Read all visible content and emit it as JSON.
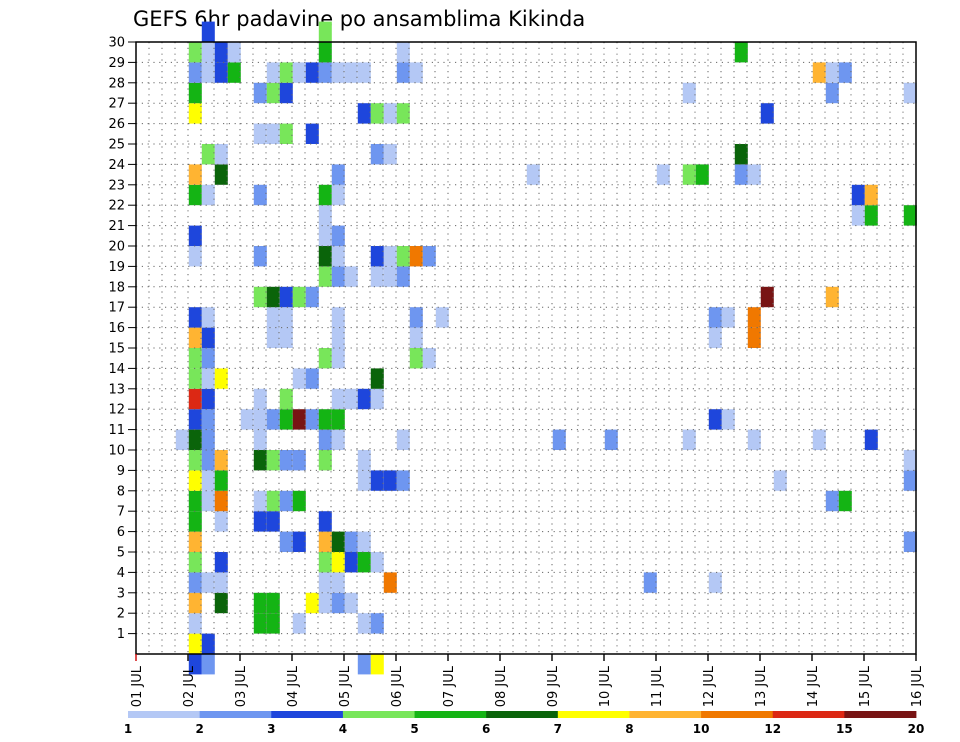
{
  "chart_data": {
    "type": "heatmap",
    "title": "GEFS 6hr padavine po ansamblima Kikinda",
    "x_tick_labels": [
      "01 JUL",
      "02 JUL",
      "03 JUL",
      "04 JUL",
      "05 JUL",
      "06 JUL",
      "07 JUL",
      "08 JUL",
      "09 JUL",
      "10 JUL",
      "11 JUL",
      "12 JUL",
      "13 JUL",
      "14 JUL",
      "15 JUL",
      "16 JUL"
    ],
    "y_tick_labels": [
      "1",
      "2",
      "3",
      "4",
      "5",
      "6",
      "7",
      "8",
      "9",
      "10",
      "11",
      "12",
      "13",
      "14",
      "15",
      "16",
      "17",
      "18",
      "19",
      "20",
      "21",
      "22",
      "23",
      "24",
      "25",
      "26",
      "27",
      "28",
      "29",
      "30"
    ],
    "xlim": [
      0,
      60
    ],
    "ylim": [
      0,
      30
    ],
    "grid": true,
    "colorbar": {
      "colors": [
        "#b4c8f5",
        "#6e96f0",
        "#1e46dc",
        "#78e65a",
        "#14b414",
        "#0a640a",
        "#ffff00",
        "#ffb432",
        "#f07800",
        "#dc2814",
        "#781414"
      ],
      "labels": [
        "1",
        "2",
        "3",
        "4",
        "5",
        "6",
        "7",
        "8",
        "10",
        "12",
        "15",
        "20"
      ],
      "bounds": [
        1,
        2,
        3,
        4,
        5,
        6,
        7,
        8,
        10,
        12,
        15,
        20
      ]
    },
    "cells": [
      [
        4,
        0,
        7
      ],
      [
        5,
        0,
        3
      ],
      [
        4,
        1,
        1
      ],
      [
        9,
        1,
        5
      ],
      [
        10,
        1,
        5
      ],
      [
        12,
        1,
        1
      ],
      [
        17,
        1,
        1
      ],
      [
        18,
        1,
        2
      ],
      [
        4,
        2,
        8
      ],
      [
        6,
        2,
        6
      ],
      [
        9,
        2,
        5
      ],
      [
        10,
        2,
        5
      ],
      [
        13,
        2,
        7
      ],
      [
        14,
        2,
        1
      ],
      [
        15,
        2,
        2
      ],
      [
        16,
        2,
        1
      ],
      [
        4,
        3,
        2
      ],
      [
        5,
        3,
        1
      ],
      [
        6,
        3,
        1
      ],
      [
        14,
        3,
        1
      ],
      [
        15,
        3,
        1
      ],
      [
        19,
        3,
        9
      ],
      [
        39,
        3,
        2
      ],
      [
        44,
        3,
        1
      ],
      [
        4,
        4,
        4
      ],
      [
        6,
        4,
        3
      ],
      [
        14,
        4,
        4
      ],
      [
        15,
        4,
        7
      ],
      [
        16,
        4,
        3
      ],
      [
        17,
        4,
        5
      ],
      [
        18,
        4,
        1
      ],
      [
        4,
        5,
        8
      ],
      [
        11,
        5,
        2
      ],
      [
        12,
        5,
        3
      ],
      [
        14,
        5,
        8
      ],
      [
        15,
        5,
        6
      ],
      [
        16,
        5,
        2
      ],
      [
        17,
        5,
        1
      ],
      [
        59,
        5,
        2
      ],
      [
        4,
        6,
        5
      ],
      [
        6,
        6,
        1
      ],
      [
        9,
        6,
        3
      ],
      [
        10,
        6,
        3
      ],
      [
        14,
        6,
        3
      ],
      [
        4,
        7,
        5
      ],
      [
        5,
        7,
        1
      ],
      [
        6,
        7,
        9
      ],
      [
        9,
        7,
        1
      ],
      [
        10,
        7,
        4
      ],
      [
        11,
        7,
        2
      ],
      [
        12,
        7,
        5
      ],
      [
        53,
        7,
        2
      ],
      [
        54,
        7,
        5
      ],
      [
        4,
        8,
        7
      ],
      [
        5,
        8,
        1
      ],
      [
        6,
        8,
        5
      ],
      [
        17,
        8,
        1
      ],
      [
        18,
        8,
        3
      ],
      [
        19,
        8,
        3
      ],
      [
        20,
        8,
        2
      ],
      [
        49,
        8,
        1
      ],
      [
        59,
        8,
        2
      ],
      [
        4,
        9,
        4
      ],
      [
        5,
        9,
        2
      ],
      [
        6,
        9,
        8
      ],
      [
        9,
        9,
        6
      ],
      [
        10,
        9,
        4
      ],
      [
        11,
        9,
        2
      ],
      [
        12,
        9,
        2
      ],
      [
        14,
        9,
        4
      ],
      [
        17,
        9,
        1
      ],
      [
        59,
        9,
        1
      ],
      [
        3,
        10,
        1
      ],
      [
        4,
        10,
        6
      ],
      [
        5,
        10,
        2
      ],
      [
        9,
        10,
        1
      ],
      [
        14,
        10,
        2
      ],
      [
        15,
        10,
        1
      ],
      [
        20,
        10,
        1
      ],
      [
        32,
        10,
        2
      ],
      [
        36,
        10,
        2
      ],
      [
        42,
        10,
        1
      ],
      [
        47,
        10,
        1
      ],
      [
        52,
        10,
        1
      ],
      [
        56,
        10,
        3
      ],
      [
        4,
        11,
        3
      ],
      [
        5,
        11,
        2
      ],
      [
        8,
        11,
        1
      ],
      [
        9,
        11,
        1
      ],
      [
        10,
        11,
        2
      ],
      [
        11,
        11,
        5
      ],
      [
        12,
        11,
        11
      ],
      [
        13,
        11,
        2
      ],
      [
        14,
        11,
        5
      ],
      [
        15,
        11,
        5
      ],
      [
        44,
        11,
        3
      ],
      [
        45,
        11,
        1
      ],
      [
        4,
        12,
        10
      ],
      [
        5,
        12,
        3
      ],
      [
        9,
        12,
        1
      ],
      [
        11,
        12,
        4
      ],
      [
        15,
        12,
        1
      ],
      [
        16,
        12,
        1
      ],
      [
        17,
        12,
        3
      ],
      [
        18,
        12,
        1
      ],
      [
        4,
        13,
        4
      ],
      [
        5,
        13,
        1
      ],
      [
        6,
        13,
        7
      ],
      [
        12,
        13,
        1
      ],
      [
        13,
        13,
        2
      ],
      [
        18,
        13,
        6
      ],
      [
        4,
        14,
        4
      ],
      [
        5,
        14,
        2
      ],
      [
        14,
        14,
        4
      ],
      [
        15,
        14,
        1
      ],
      [
        21,
        14,
        4
      ],
      [
        22,
        14,
        1
      ],
      [
        4,
        15,
        8
      ],
      [
        5,
        15,
        3
      ],
      [
        10,
        15,
        1
      ],
      [
        11,
        15,
        1
      ],
      [
        15,
        15,
        1
      ],
      [
        21,
        15,
        1
      ],
      [
        44,
        15,
        1
      ],
      [
        47,
        15,
        9
      ],
      [
        4,
        16,
        3
      ],
      [
        5,
        16,
        1
      ],
      [
        10,
        16,
        1
      ],
      [
        11,
        16,
        1
      ],
      [
        15,
        16,
        1
      ],
      [
        21,
        16,
        2
      ],
      [
        23,
        16,
        1
      ],
      [
        44,
        16,
        2
      ],
      [
        45,
        16,
        1
      ],
      [
        47,
        16,
        9
      ],
      [
        9,
        17,
        4
      ],
      [
        10,
        17,
        6
      ],
      [
        11,
        17,
        3
      ],
      [
        12,
        17,
        4
      ],
      [
        13,
        17,
        2
      ],
      [
        48,
        17,
        11
      ],
      [
        53,
        17,
        8
      ],
      [
        14,
        18,
        4
      ],
      [
        15,
        18,
        2
      ],
      [
        16,
        18,
        1
      ],
      [
        18,
        18,
        1
      ],
      [
        19,
        18,
        1
      ],
      [
        20,
        18,
        2
      ],
      [
        4,
        19,
        1
      ],
      [
        9,
        19,
        2
      ],
      [
        14,
        19,
        6
      ],
      [
        15,
        19,
        1
      ],
      [
        18,
        19,
        3
      ],
      [
        19,
        19,
        1
      ],
      [
        20,
        19,
        4
      ],
      [
        21,
        19,
        9
      ],
      [
        22,
        19,
        2
      ],
      [
        4,
        20,
        3
      ],
      [
        14,
        20,
        1
      ],
      [
        15,
        20,
        2
      ],
      [
        14,
        21,
        1
      ],
      [
        55,
        21,
        1
      ],
      [
        56,
        21,
        5
      ],
      [
        59,
        21,
        5
      ],
      [
        4,
        22,
        5
      ],
      [
        5,
        22,
        1
      ],
      [
        9,
        22,
        2
      ],
      [
        14,
        22,
        5
      ],
      [
        15,
        22,
        1
      ],
      [
        55,
        22,
        3
      ],
      [
        56,
        22,
        8
      ],
      [
        4,
        23,
        8
      ],
      [
        6,
        23,
        6
      ],
      [
        15,
        23,
        2
      ],
      [
        30,
        23,
        1
      ],
      [
        40,
        23,
        1
      ],
      [
        42,
        23,
        4
      ],
      [
        43,
        23,
        5
      ],
      [
        46,
        23,
        2
      ],
      [
        47,
        23,
        1
      ],
      [
        5,
        24,
        4
      ],
      [
        6,
        24,
        1
      ],
      [
        18,
        24,
        2
      ],
      [
        19,
        24,
        1
      ],
      [
        46,
        24,
        6
      ],
      [
        9,
        25,
        1
      ],
      [
        10,
        25,
        1
      ],
      [
        11,
        25,
        4
      ],
      [
        13,
        25,
        3
      ],
      [
        4,
        26,
        7
      ],
      [
        17,
        26,
        3
      ],
      [
        18,
        26,
        4
      ],
      [
        19,
        26,
        1
      ],
      [
        20,
        26,
        4
      ],
      [
        48,
        26,
        3
      ],
      [
        4,
        27,
        5
      ],
      [
        9,
        27,
        2
      ],
      [
        10,
        27,
        4
      ],
      [
        11,
        27,
        3
      ],
      [
        42,
        27,
        1
      ],
      [
        53,
        27,
        2
      ],
      [
        59,
        27,
        1
      ],
      [
        4,
        28,
        2
      ],
      [
        5,
        28,
        1
      ],
      [
        6,
        28,
        3
      ],
      [
        7,
        28,
        5
      ],
      [
        10,
        28,
        1
      ],
      [
        11,
        28,
        4
      ],
      [
        12,
        28,
        1
      ],
      [
        13,
        28,
        3
      ],
      [
        14,
        28,
        2
      ],
      [
        15,
        28,
        1
      ],
      [
        16,
        28,
        1
      ],
      [
        17,
        28,
        1
      ],
      [
        20,
        28,
        2
      ],
      [
        21,
        28,
        1
      ],
      [
        52,
        28,
        8
      ],
      [
        53,
        28,
        1
      ],
      [
        54,
        28,
        2
      ],
      [
        4,
        29,
        4
      ],
      [
        5,
        29,
        1
      ],
      [
        6,
        29,
        3
      ],
      [
        7,
        29,
        1
      ],
      [
        14,
        29,
        5
      ],
      [
        20,
        29,
        1
      ],
      [
        46,
        29,
        5
      ],
      [
        5,
        30,
        3
      ],
      [
        14,
        30,
        4
      ],
      [
        4,
        -1,
        3
      ],
      [
        5,
        -1,
        2
      ],
      [
        17,
        -1,
        2
      ],
      [
        18,
        -1,
        7
      ]
    ]
  }
}
